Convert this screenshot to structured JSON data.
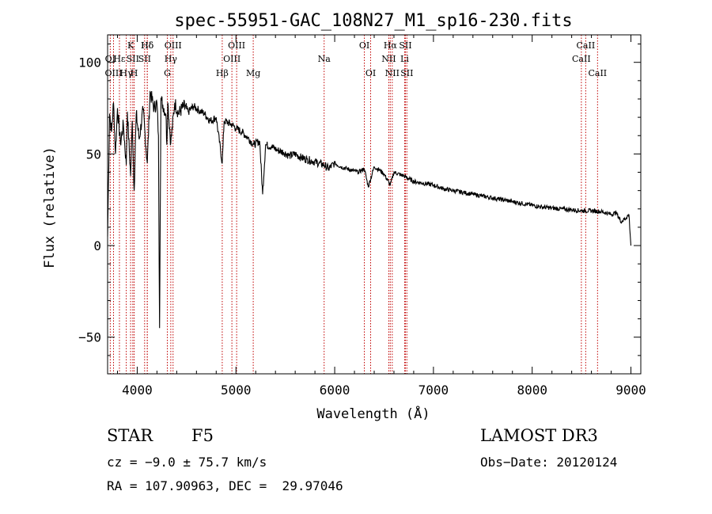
{
  "chart_data": {
    "type": "line",
    "title": "spec-55951-GAC_108N27_M1_sp16-230.fits",
    "xlabel": "Wavelength (Å)",
    "ylabel": "Flux (relative)",
    "xlim": [
      3700,
      9100
    ],
    "ylim": [
      -70,
      115
    ],
    "x_ticks": [
      4000,
      5000,
      6000,
      7000,
      8000,
      9000
    ],
    "x_tick_labels": [
      "4000",
      "5000",
      "6000",
      "7000",
      "8000",
      "9000"
    ],
    "y_ticks": [
      -50,
      0,
      50,
      100
    ],
    "y_tick_labels": [
      "−50",
      "0",
      "50",
      "100"
    ],
    "grid": false,
    "series": [
      {
        "name": "flux",
        "x": [
          3700,
          3720,
          3740,
          3760,
          3780,
          3800,
          3830,
          3860,
          3889,
          3900,
          3933,
          3950,
          3969,
          3990,
          4020,
          4060,
          4102,
          4130,
          4170,
          4200,
          4215,
          4226,
          4240,
          4290,
          4300,
          4310,
          4340,
          4380,
          4420,
          4470,
          4520,
          4570,
          4620,
          4680,
          4740,
          4800,
          4861,
          4880,
          4920,
          4960,
          5000,
          5060,
          5120,
          5180,
          5240,
          5270,
          5300,
          5360,
          5420,
          5480,
          5540,
          5600,
          5660,
          5720,
          5780,
          5840,
          5890,
          5940,
          6000,
          6060,
          6120,
          6180,
          6240,
          6300,
          6340,
          6400,
          6460,
          6500,
          6563,
          6600,
          6700,
          6800,
          6900,
          7000,
          7100,
          7200,
          7300,
          7400,
          7500,
          7600,
          7700,
          7800,
          7900,
          8000,
          8100,
          8200,
          8300,
          8400,
          8500,
          8600,
          8700,
          8800,
          8850,
          8900,
          8950,
          8980,
          9000
        ],
        "values": [
          5,
          72,
          62,
          78,
          50,
          75,
          56,
          66,
          44,
          73,
          38,
          68,
          30,
          72,
          58,
          74,
          45,
          84,
          75,
          78,
          60,
          -45,
          80,
          72,
          55,
          78,
          56,
          78,
          72,
          76,
          73,
          76,
          74,
          72,
          68,
          70,
          45,
          68,
          67,
          66,
          64,
          62,
          59,
          55,
          57,
          28,
          55,
          54,
          52,
          51,
          49,
          50,
          48,
          47,
          46,
          45,
          44,
          42,
          45,
          43,
          42,
          41,
          40,
          42,
          32,
          43,
          41,
          39,
          33,
          40,
          38,
          35,
          34,
          33,
          31,
          30,
          29,
          28,
          27,
          26,
          25,
          24,
          23,
          22,
          21,
          20.5,
          20,
          19.5,
          19,
          19,
          18.5,
          17,
          18,
          13,
          15,
          17,
          0
        ]
      }
    ],
    "lines": [
      {
        "name": "Hδ",
        "wl": 4102,
        "row": 1
      },
      {
        "name": "OI",
        "wl": 3727,
        "row": 2
      },
      {
        "name": "OIII",
        "wl": 3760,
        "row": 3
      },
      {
        "name": "Hε",
        "wl": 3820,
        "row": 2
      },
      {
        "name": "Hγ",
        "wl": 3889,
        "row": 3
      },
      {
        "name": "K",
        "wl": 3933,
        "row": 1
      },
      {
        "name": "SII",
        "wl": 3955,
        "row": 2
      },
      {
        "name": "H",
        "wl": 3969,
        "row": 3
      },
      {
        "name": "Hδ",
        "wl": 4102,
        "row": 1
      },
      {
        "name": "SII",
        "wl": 4075,
        "row": 2
      },
      {
        "name": "OIII",
        "wl": 4363,
        "row": 1
      },
      {
        "name": "Hγ",
        "wl": 4340,
        "row": 2
      },
      {
        "name": "G",
        "wl": 4305,
        "row": 3
      },
      {
        "name": "OIII",
        "wl": 5007,
        "row": 1
      },
      {
        "name": "OIII",
        "wl": 4959,
        "row": 2
      },
      {
        "name": "Hβ",
        "wl": 4861,
        "row": 3
      },
      {
        "name": "Mg",
        "wl": 5175,
        "row": 3
      },
      {
        "name": "Na",
        "wl": 5893,
        "row": 2
      },
      {
        "name": "OI",
        "wl": 6300,
        "row": 1
      },
      {
        "name": "OI",
        "wl": 6364,
        "row": 3
      },
      {
        "name": "Hα",
        "wl": 6563,
        "row": 1
      },
      {
        "name": "SII",
        "wl": 6716,
        "row": 1
      },
      {
        "name": "NII",
        "wl": 6548,
        "row": 2
      },
      {
        "name": "Li",
        "wl": 6708,
        "row": 2
      },
      {
        "name": "NII",
        "wl": 6583,
        "row": 3
      },
      {
        "name": "SII",
        "wl": 6731,
        "row": 3
      },
      {
        "name": "CaII",
        "wl": 8542,
        "row": 1
      },
      {
        "name": "CaII",
        "wl": 8498,
        "row": 2
      },
      {
        "name": "CaII",
        "wl": 8662,
        "row": 3
      }
    ]
  },
  "info": {
    "object_type": "STAR",
    "subclass": "F5",
    "survey": "LAMOST DR3",
    "cz": "cz = −9.0 ± 75.7 km/s",
    "obs_date": "Obs−Date: 20120124",
    "coords": "RA = 107.90963, DEC =  29.97046"
  },
  "colors": {
    "axis": "#000000",
    "spectrum": "#000000",
    "line_marker": "#c00000"
  }
}
